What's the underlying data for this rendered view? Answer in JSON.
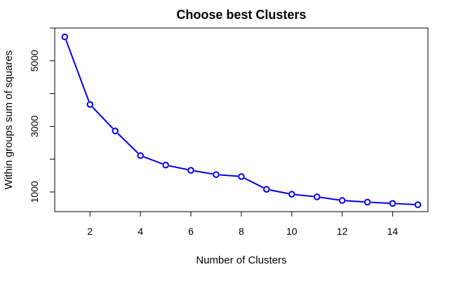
{
  "chart_data": {
    "type": "line",
    "title": "Choose best Clusters",
    "xlabel": "Number of Clusters",
    "ylabel": "Within groups sum of squares",
    "xlim": [
      0.6,
      15.4
    ],
    "ylim": [
      400,
      6000
    ],
    "x_ticks": [
      2,
      4,
      6,
      8,
      10,
      12,
      14
    ],
    "y_ticks": [
      1000,
      2000,
      3000,
      4000,
      5000,
      6000
    ],
    "y_tick_labels": [
      1000,
      3000,
      5000
    ],
    "grid": false,
    "line_color": "#0000ee",
    "marker": "open-circle",
    "x": [
      1,
      2,
      3,
      4,
      5,
      6,
      7,
      8,
      9,
      10,
      11,
      12,
      13,
      14,
      15
    ],
    "y": [
      5730,
      3670,
      2860,
      2110,
      1820,
      1660,
      1530,
      1470,
      1080,
      930,
      850,
      740,
      690,
      650,
      610
    ]
  }
}
